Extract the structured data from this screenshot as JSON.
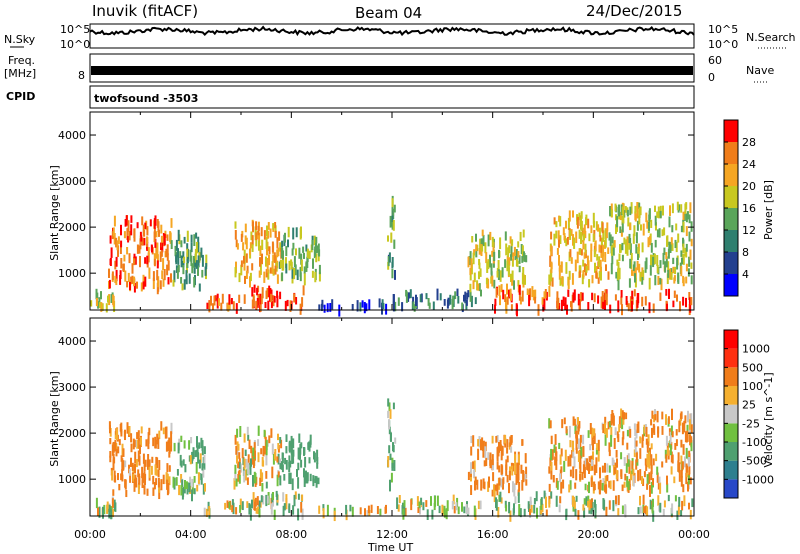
{
  "header": {
    "station": "Inuvik (fitACF)",
    "beam": "Beam 04",
    "date": "24/Dec/2015"
  },
  "strips": {
    "nsky_label": "N.Sky",
    "nsearch_label": "N.Search",
    "nsky_ticks": [
      "10^5",
      "10^0"
    ],
    "nsearch_ticks": [
      "10^5",
      "10^0"
    ],
    "freq_label_1": "Freq.",
    "freq_label_2": "[MHz]",
    "freq_ticks": [
      "8"
    ],
    "nave_label": "Nave",
    "nave_ticks": [
      "60",
      "0"
    ],
    "cpid_label": "CPID",
    "cpid_value": "twofsound -3503"
  },
  "chart_data": [
    {
      "type": "heatmap",
      "panel": "power",
      "ylabel": "Slant Range [km]",
      "ylim": [
        200,
        4500
      ],
      "yticks": [
        1000,
        2000,
        3000,
        4000
      ],
      "colorbar": {
        "label": "Power [dB]",
        "range": [
          0,
          32
        ],
        "ticks": [
          4,
          8,
          12,
          16,
          20,
          24,
          28
        ],
        "colors": [
          "#0000ff",
          "#23408f",
          "#2f7f6f",
          "#5aa55a",
          "#c8c820",
          "#f5a623",
          "#f07d1a",
          "#ff0000"
        ]
      },
      "blobs": [
        {
          "t": [
            0.7,
            3.2
          ],
          "r": [
            700,
            2200
          ],
          "v": 26
        },
        {
          "t": [
            3.2,
            4.6
          ],
          "r": [
            700,
            1900
          ],
          "v": 13
        },
        {
          "t": [
            4.5,
            6.8
          ],
          "r": [
            250,
            520
          ],
          "v": 28
        },
        {
          "t": [
            5.7,
            7.6
          ],
          "r": [
            850,
            2100
          ],
          "v": 22
        },
        {
          "t": [
            7.5,
            9.1
          ],
          "r": [
            900,
            1950
          ],
          "v": 15
        },
        {
          "t": [
            6.3,
            8.5
          ],
          "r": [
            250,
            700
          ],
          "v": 30
        },
        {
          "t": [
            9.0,
            11.8
          ],
          "r": [
            250,
            400
          ],
          "v": 5
        },
        {
          "t": [
            11.8,
            12.1
          ],
          "r": [
            900,
            2700
          ],
          "v": 12
        },
        {
          "t": [
            12.0,
            15.5
          ],
          "r": [
            250,
            600
          ],
          "v": 9
        },
        {
          "t": [
            15.0,
            17.3
          ],
          "r": [
            700,
            1900
          ],
          "v": 18
        },
        {
          "t": [
            16.0,
            18.3
          ],
          "r": [
            250,
            700
          ],
          "v": 26
        },
        {
          "t": [
            18.2,
            20.6
          ],
          "r": [
            800,
            2300
          ],
          "v": 21
        },
        {
          "t": [
            18.5,
            23.9
          ],
          "r": [
            250,
            600
          ],
          "v": 29
        },
        {
          "t": [
            20.6,
            23.9
          ],
          "r": [
            800,
            2500
          ],
          "v": 17
        },
        {
          "t": [
            0.0,
            1.0
          ],
          "r": [
            250,
            600
          ],
          "v": 18
        }
      ]
    },
    {
      "type": "heatmap",
      "panel": "velocity",
      "ylabel": "Slant Range [km]",
      "xlabel": "Time UT",
      "ylim": [
        200,
        4500
      ],
      "yticks": [
        1000,
        2000,
        3000,
        4000
      ],
      "xticks": [
        "00:00",
        "04:00",
        "08:00",
        "12:00",
        "16:00",
        "20:00",
        "00:00"
      ],
      "colorbar": {
        "label": "Velocity [m s^-1]",
        "ticks": [
          "1000",
          "500",
          "100",
          "25",
          "-25",
          "-100",
          "-500",
          "-1000"
        ],
        "colors": [
          "#2848c8",
          "#2e7f8f",
          "#4fa070",
          "#70c040",
          "#c8c8c8",
          "#f5b030",
          "#f07d1a",
          "#ff3010",
          "#ff0000"
        ]
      },
      "blobs": [
        {
          "t": [
            0.7,
            3.2
          ],
          "r": [
            700,
            2200
          ],
          "v": -200
        },
        {
          "t": [
            3.2,
            4.6
          ],
          "r": [
            700,
            1900
          ],
          "v": 120
        },
        {
          "t": [
            4.5,
            6.8
          ],
          "r": [
            250,
            520
          ],
          "v": -10
        },
        {
          "t": [
            5.7,
            7.6
          ],
          "r": [
            850,
            2100
          ],
          "v": -60
        },
        {
          "t": [
            7.5,
            9.1
          ],
          "r": [
            900,
            1950
          ],
          "v": 300
        },
        {
          "t": [
            6.3,
            8.5
          ],
          "r": [
            250,
            700
          ],
          "v": 60
        },
        {
          "t": [
            9.0,
            11.8
          ],
          "r": [
            250,
            400
          ],
          "v": 10
        },
        {
          "t": [
            11.8,
            12.1
          ],
          "r": [
            900,
            2700
          ],
          "v": 80
        },
        {
          "t": [
            12.0,
            15.5
          ],
          "r": [
            250,
            600
          ],
          "v": 40
        },
        {
          "t": [
            15.0,
            17.3
          ],
          "r": [
            700,
            1900
          ],
          "v": -180
        },
        {
          "t": [
            16.0,
            18.3
          ],
          "r": [
            250,
            700
          ],
          "v": 70
        },
        {
          "t": [
            18.2,
            20.6
          ],
          "r": [
            800,
            2300
          ],
          "v": -150
        },
        {
          "t": [
            18.5,
            23.9
          ],
          "r": [
            250,
            600
          ],
          "v": 50
        },
        {
          "t": [
            20.6,
            23.9
          ],
          "r": [
            800,
            2500
          ],
          "v": -120
        },
        {
          "t": [
            0.0,
            1.0
          ],
          "r": [
            250,
            600
          ],
          "v": 40
        }
      ]
    }
  ]
}
